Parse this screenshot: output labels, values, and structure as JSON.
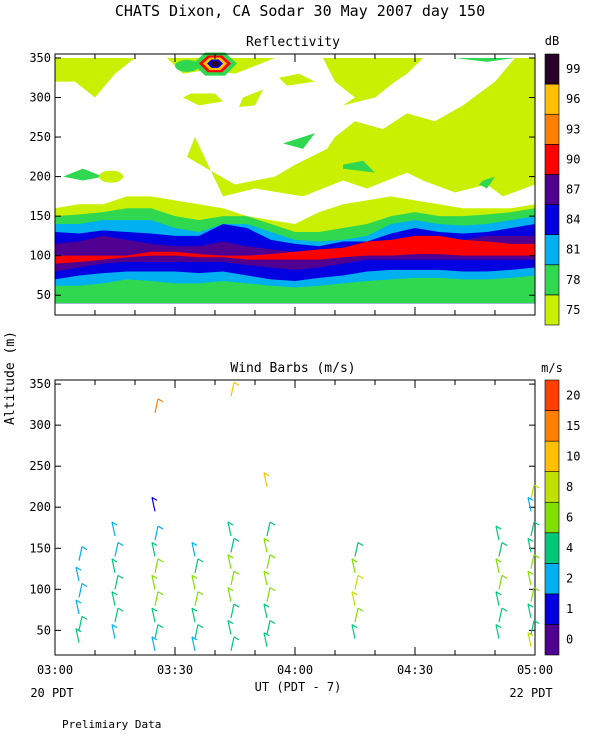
{
  "header": {
    "title": "CHATS Dixon, CA  Sodar  30 May 2007  day 150",
    "y_label": "Altitude (m)",
    "x_label": "UT  (PDT - 7)",
    "start_label": "20 PDT",
    "end_label": "22 PDT",
    "footer_note": "Prelimiary Data"
  },
  "colors": {
    "reflectivity_levels": [
      "#c8f000",
      "#30d850",
      "#00b0f0",
      "#0000e0",
      "#500090",
      "#ff0000",
      "#ff8000",
      "#ffc000",
      "#280028"
    ],
    "wind_levels": [
      "#500090",
      "#0000e0",
      "#00b0f0",
      "#00c878",
      "#80e000",
      "#c0e000",
      "#ffc000",
      "#ff8000",
      "#ff4000",
      "#ff0000"
    ]
  },
  "chart_data": [
    {
      "type": "heatmap",
      "title": "Reflectivity",
      "units_label": "dB",
      "x": [
        "03:00",
        "03:30",
        "04:00",
        "04:30",
        "05:00"
      ],
      "x_range_minutes": [
        0,
        120
      ],
      "ylim": [
        25,
        355
      ],
      "yticks": [
        50,
        100,
        150,
        200,
        250,
        300,
        350
      ],
      "colorbar_ticks": [
        75,
        78,
        81,
        84,
        87,
        90,
        93,
        96,
        99
      ],
      "layers": [
        {
          "name": "above 75 dB",
          "top": [
            160,
            165,
            165,
            175,
            175,
            170,
            165,
            160,
            150,
            145,
            140,
            155,
            165,
            170,
            175,
            170,
            165,
            160,
            160,
            160,
            165
          ]
        },
        {
          "name": "above 78 dB",
          "top": [
            150,
            152,
            155,
            160,
            160,
            150,
            145,
            150,
            150,
            140,
            130,
            130,
            135,
            140,
            150,
            155,
            150,
            150,
            152,
            155,
            160
          ]
        },
        {
          "name": "above 81 dB",
          "top": [
            140,
            140,
            145,
            145,
            145,
            135,
            130,
            140,
            140,
            130,
            120,
            118,
            120,
            125,
            140,
            145,
            140,
            138,
            140,
            145,
            150
          ]
        },
        {
          "name": "above 84 dB",
          "top": [
            130,
            128,
            132,
            130,
            128,
            125,
            125,
            140,
            135,
            120,
            115,
            112,
            118,
            118,
            128,
            135,
            130,
            128,
            130,
            135,
            140
          ]
        },
        {
          "name": "above 87 dB",
          "top": [
            115,
            118,
            125,
            120,
            115,
            112,
            112,
            118,
            112,
            108,
            105,
            105,
            110,
            115,
            120,
            125,
            125,
            120,
            125,
            125,
            125
          ]
        },
        {
          "name": "above 90 dB",
          "top": [
            100,
            100,
            100,
            100,
            105,
            105,
            102,
            100,
            100,
            102,
            105,
            108,
            110,
            118,
            120,
            125,
            125,
            120,
            118,
            115,
            115
          ]
        },
        {
          "name": "above 87 dB (lower)",
          "top": [
            90,
            92,
            95,
            98,
            100,
            100,
            98,
            98,
            95,
            95,
            95,
            95,
            98,
            100,
            100,
            102,
            102,
            100,
            100,
            100,
            100
          ]
        },
        {
          "name": "above 84 dB (lower)",
          "top": [
            80,
            85,
            90,
            92,
            92,
            92,
            92,
            92,
            88,
            85,
            82,
            85,
            90,
            95,
            95,
            95,
            95,
            95,
            95,
            95,
            95
          ]
        },
        {
          "name": "above 81 dB (lower)",
          "top": [
            70,
            75,
            78,
            80,
            80,
            80,
            78,
            80,
            75,
            70,
            68,
            72,
            75,
            80,
            82,
            82,
            82,
            80,
            80,
            82,
            85
          ]
        },
        {
          "name": "above 78 dB (lower)",
          "top": [
            62,
            62,
            65,
            70,
            68,
            65,
            65,
            68,
            65,
            62,
            60,
            62,
            65,
            68,
            70,
            72,
            72,
            70,
            70,
            72,
            75
          ]
        }
      ],
      "cells": [
        {
          "level": 75,
          "t": 14,
          "h": 200
        },
        {
          "level": 78,
          "t": 33,
          "h": 340
        },
        {
          "level": 99,
          "t": 40,
          "h": 343
        }
      ],
      "contours": [
        {
          "level": 75,
          "data": [
            [
              0,
              350
            ],
            [
              0,
              320
            ],
            [
              5,
              320
            ],
            [
              10,
              300
            ],
            [
              15,
              330
            ],
            [
              20,
              350
            ]
          ]
        },
        {
          "level": 75,
          "data": [
            [
              28,
              350
            ],
            [
              32,
              330
            ],
            [
              38,
              335
            ],
            [
              45,
              330
            ],
            [
              55,
              350
            ]
          ]
        },
        {
          "level": 75,
          "data": [
            [
              32,
              300
            ],
            [
              36,
              290
            ],
            [
              42,
              295
            ],
            [
              40,
              305
            ],
            [
              34,
              305
            ]
          ]
        },
        {
          "level": 75,
          "data": [
            [
              47,
              300
            ],
            [
              52,
              310
            ],
            [
              50,
              290
            ],
            [
              46,
              288
            ]
          ]
        },
        {
          "level": 75,
          "data": [
            [
              61,
              330
            ],
            [
              65,
              320
            ],
            [
              58,
              315
            ],
            [
              56,
              325
            ]
          ]
        },
        {
          "level": 75,
          "data": [
            [
              67,
              350
            ],
            [
              70,
              320
            ],
            [
              75,
              300
            ],
            [
              72,
              290
            ],
            [
              80,
              300
            ],
            [
              85,
              320
            ],
            [
              88,
              330
            ],
            [
              92,
              350
            ]
          ]
        },
        {
          "level": 75,
          "data": [
            [
              35,
              250
            ],
            [
              33,
              225
            ],
            [
              38,
              210
            ],
            [
              45,
              190
            ],
            [
              55,
              200
            ],
            [
              60,
              215
            ],
            [
              68,
              235
            ],
            [
              70,
              250
            ],
            [
              75,
              270
            ],
            [
              82,
              260
            ],
            [
              88,
              280
            ],
            [
              95,
              270
            ],
            [
              102,
              290
            ],
            [
              110,
              320
            ],
            [
              115,
              350
            ],
            [
              120,
              350
            ],
            [
              120,
              190
            ],
            [
              112,
              175
            ],
            [
              108,
              190
            ],
            [
              100,
              180
            ],
            [
              92,
              195
            ],
            [
              88,
              205
            ],
            [
              78,
              185
            ],
            [
              72,
              195
            ],
            [
              62,
              175
            ],
            [
              50,
              185
            ],
            [
              42,
              175
            ]
          ]
        },
        {
          "level": 75,
          "data": [
            [
              110,
              220
            ],
            [
              114,
              215
            ],
            [
              116,
              200
            ],
            [
              111,
              195
            ]
          ]
        },
        {
          "level": 78,
          "data": [
            [
              7,
              210
            ],
            [
              12,
              200
            ],
            [
              7,
              195
            ],
            [
              2,
              200
            ]
          ]
        },
        {
          "level": 78,
          "data": [
            [
              57,
              242
            ],
            [
              65,
              255
            ],
            [
              62,
              235
            ]
          ]
        },
        {
          "level": 78,
          "data": [
            [
              72,
              215
            ],
            [
              77,
              220
            ],
            [
              80,
              205
            ],
            [
              72,
              210
            ]
          ]
        },
        {
          "level": 78,
          "data": [
            [
              107,
              195
            ],
            [
              110,
              200
            ],
            [
              108,
              185
            ],
            [
              106,
              190
            ]
          ]
        },
        {
          "level": 78,
          "data": [
            [
              100,
              350
            ],
            [
              108,
              345
            ],
            [
              115,
              350
            ]
          ]
        }
      ]
    },
    {
      "type": "scatter",
      "title": "Wind Barbs (m/s)",
      "units_label": "m/s",
      "x": [
        "03:00",
        "03:30",
        "04:00",
        "04:30",
        "05:00"
      ],
      "x_range_minutes": [
        0,
        120
      ],
      "ylim": [
        20,
        355
      ],
      "yticks": [
        50,
        100,
        150,
        200,
        250,
        300,
        350
      ],
      "colorbar_ticks": [
        0,
        1,
        2,
        4,
        6,
        8,
        10,
        15,
        20
      ],
      "series": [
        {
          "name": "03:06",
          "t": 6,
          "points": [
            {
              "alt": 135,
              "speed": 3
            },
            {
              "alt": 110,
              "speed": 3
            },
            {
              "alt": 90,
              "speed": 3
            },
            {
              "alt": 70,
              "speed": 3
            },
            {
              "alt": 50,
              "speed": 4
            },
            {
              "alt": 35,
              "speed": 4
            }
          ]
        },
        {
          "name": "03:15",
          "t": 15,
          "points": [
            {
              "alt": 165,
              "speed": 2
            },
            {
              "alt": 140,
              "speed": 3
            },
            {
              "alt": 120,
              "speed": 4
            },
            {
              "alt": 100,
              "speed": 5
            },
            {
              "alt": 80,
              "speed": 5
            },
            {
              "alt": 60,
              "speed": 4
            },
            {
              "alt": 40,
              "speed": 3
            }
          ]
        },
        {
          "name": "03:25",
          "t": 25,
          "points": [
            {
              "alt": 315,
              "speed": 15
            },
            {
              "alt": 195,
              "speed": 1
            },
            {
              "alt": 160,
              "speed": 2
            },
            {
              "alt": 140,
              "speed": 5
            },
            {
              "alt": 120,
              "speed": 6
            },
            {
              "alt": 100,
              "speed": 6
            },
            {
              "alt": 80,
              "speed": 6
            },
            {
              "alt": 60,
              "speed": 5
            },
            {
              "alt": 40,
              "speed": 4
            },
            {
              "alt": 25,
              "speed": 3
            }
          ]
        },
        {
          "name": "03:35",
          "t": 35,
          "points": [
            {
              "alt": 140,
              "speed": 3
            },
            {
              "alt": 120,
              "speed": 4
            },
            {
              "alt": 100,
              "speed": 7
            },
            {
              "alt": 80,
              "speed": 6
            },
            {
              "alt": 60,
              "speed": 5
            },
            {
              "alt": 40,
              "speed": 4
            },
            {
              "alt": 25,
              "speed": 3
            }
          ]
        },
        {
          "name": "03:44",
          "t": 44,
          "points": [
            {
              "alt": 335,
              "speed": 12
            },
            {
              "alt": 165,
              "speed": 4
            },
            {
              "alt": 145,
              "speed": 5
            },
            {
              "alt": 125,
              "speed": 6
            },
            {
              "alt": 105,
              "speed": 6
            },
            {
              "alt": 85,
              "speed": 6
            },
            {
              "alt": 65,
              "speed": 5
            },
            {
              "alt": 45,
              "speed": 4
            },
            {
              "alt": 25,
              "speed": 4
            }
          ]
        },
        {
          "name": "03:53",
          "t": 53,
          "points": [
            {
              "alt": 225,
              "speed": 10
            },
            {
              "alt": 165,
              "speed": 5
            },
            {
              "alt": 145,
              "speed": 6
            },
            {
              "alt": 125,
              "speed": 6
            },
            {
              "alt": 105,
              "speed": 6
            },
            {
              "alt": 85,
              "speed": 6
            },
            {
              "alt": 65,
              "speed": 5
            },
            {
              "alt": 45,
              "speed": 4
            },
            {
              "alt": 30,
              "speed": 4
            }
          ]
        },
        {
          "name": "04:15",
          "t": 75,
          "points": [
            {
              "alt": 140,
              "speed": 5
            },
            {
              "alt": 120,
              "speed": 6
            },
            {
              "alt": 100,
              "speed": 9
            },
            {
              "alt": 80,
              "speed": 8
            },
            {
              "alt": 60,
              "speed": 6
            },
            {
              "alt": 40,
              "speed": 5
            }
          ]
        },
        {
          "name": "04:51",
          "t": 111,
          "points": [
            {
              "alt": 160,
              "speed": 5
            },
            {
              "alt": 140,
              "speed": 5
            },
            {
              "alt": 120,
              "speed": 6
            },
            {
              "alt": 100,
              "speed": 6
            },
            {
              "alt": 80,
              "speed": 5
            },
            {
              "alt": 60,
              "speed": 5
            },
            {
              "alt": 40,
              "speed": 4
            }
          ]
        },
        {
          "name": "05:00",
          "t": 119,
          "points": [
            {
              "alt": 210,
              "speed": 9
            },
            {
              "alt": 195,
              "speed": 3
            },
            {
              "alt": 165,
              "speed": 4
            },
            {
              "alt": 145,
              "speed": 5
            },
            {
              "alt": 125,
              "speed": 6
            },
            {
              "alt": 105,
              "speed": 6
            },
            {
              "alt": 85,
              "speed": 6
            },
            {
              "alt": 65,
              "speed": 5
            },
            {
              "alt": 45,
              "speed": 4
            },
            {
              "alt": 30,
              "speed": 8
            }
          ]
        }
      ]
    }
  ]
}
